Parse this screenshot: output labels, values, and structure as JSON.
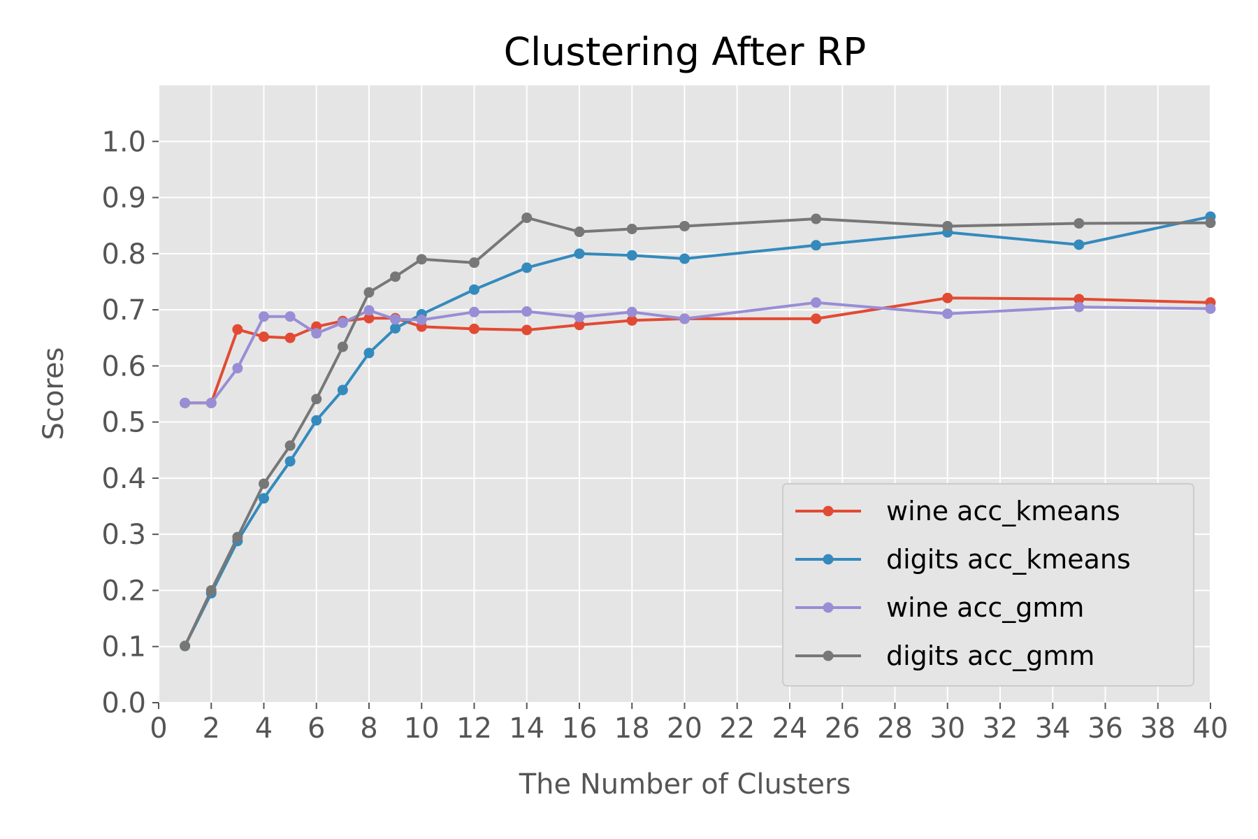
{
  "chart_data": {
    "type": "line",
    "title": "Clustering After RP",
    "xlabel": "The Number of Clusters",
    "ylabel": "Scores",
    "xlim": [
      0,
      40
    ],
    "ylim": [
      0.0,
      1.1
    ],
    "xticks": [
      0,
      2,
      4,
      6,
      8,
      10,
      12,
      14,
      16,
      18,
      20,
      22,
      24,
      26,
      28,
      30,
      32,
      34,
      36,
      38,
      40
    ],
    "yticks": [
      "0.0",
      "0.1",
      "0.2",
      "0.3",
      "0.4",
      "0.5",
      "0.6",
      "0.7",
      "0.8",
      "0.9",
      "1.0"
    ],
    "grid": true,
    "legend_position": "lower-right",
    "series": [
      {
        "name": "wine acc_kmeans",
        "color": "#E24A33",
        "x": [
          1,
          2,
          3,
          4,
          5,
          6,
          7,
          8,
          9,
          10,
          12,
          14,
          16,
          18,
          20,
          25,
          30,
          35,
          40
        ],
        "y": [
          0.534,
          0.534,
          0.665,
          0.652,
          0.65,
          0.67,
          0.68,
          0.685,
          0.685,
          0.67,
          0.666,
          0.664,
          0.673,
          0.681,
          0.684,
          0.684,
          0.721,
          0.719,
          0.713
        ]
      },
      {
        "name": "digits acc_kmeans",
        "color": "#348ABD",
        "x": [
          1,
          2,
          3,
          4,
          5,
          6,
          7,
          8,
          9,
          10,
          12,
          14,
          16,
          18,
          20,
          25,
          30,
          35,
          40
        ],
        "y": [
          0.101,
          0.195,
          0.288,
          0.364,
          0.43,
          0.503,
          0.557,
          0.623,
          0.667,
          0.692,
          0.736,
          0.775,
          0.8,
          0.797,
          0.791,
          0.815,
          0.838,
          0.816,
          0.866
        ]
      },
      {
        "name": "wine acc_gmm",
        "color": "#988ED5",
        "x": [
          1,
          2,
          3,
          4,
          5,
          6,
          7,
          8,
          9,
          10,
          12,
          14,
          16,
          18,
          20,
          25,
          30,
          35,
          40
        ],
        "y": [
          0.534,
          0.534,
          0.596,
          0.688,
          0.688,
          0.658,
          0.677,
          0.699,
          0.683,
          0.682,
          0.696,
          0.697,
          0.687,
          0.696,
          0.684,
          0.713,
          0.693,
          0.705,
          0.702
        ]
      },
      {
        "name": "digits acc_gmm",
        "color": "#777777",
        "x": [
          1,
          2,
          3,
          4,
          5,
          6,
          7,
          8,
          9,
          10,
          12,
          14,
          16,
          18,
          20,
          25,
          30,
          35,
          40
        ],
        "y": [
          0.101,
          0.2,
          0.295,
          0.39,
          0.458,
          0.541,
          0.634,
          0.731,
          0.759,
          0.79,
          0.784,
          0.864,
          0.839,
          0.844,
          0.849,
          0.862,
          0.849,
          0.854,
          0.855
        ]
      }
    ]
  }
}
